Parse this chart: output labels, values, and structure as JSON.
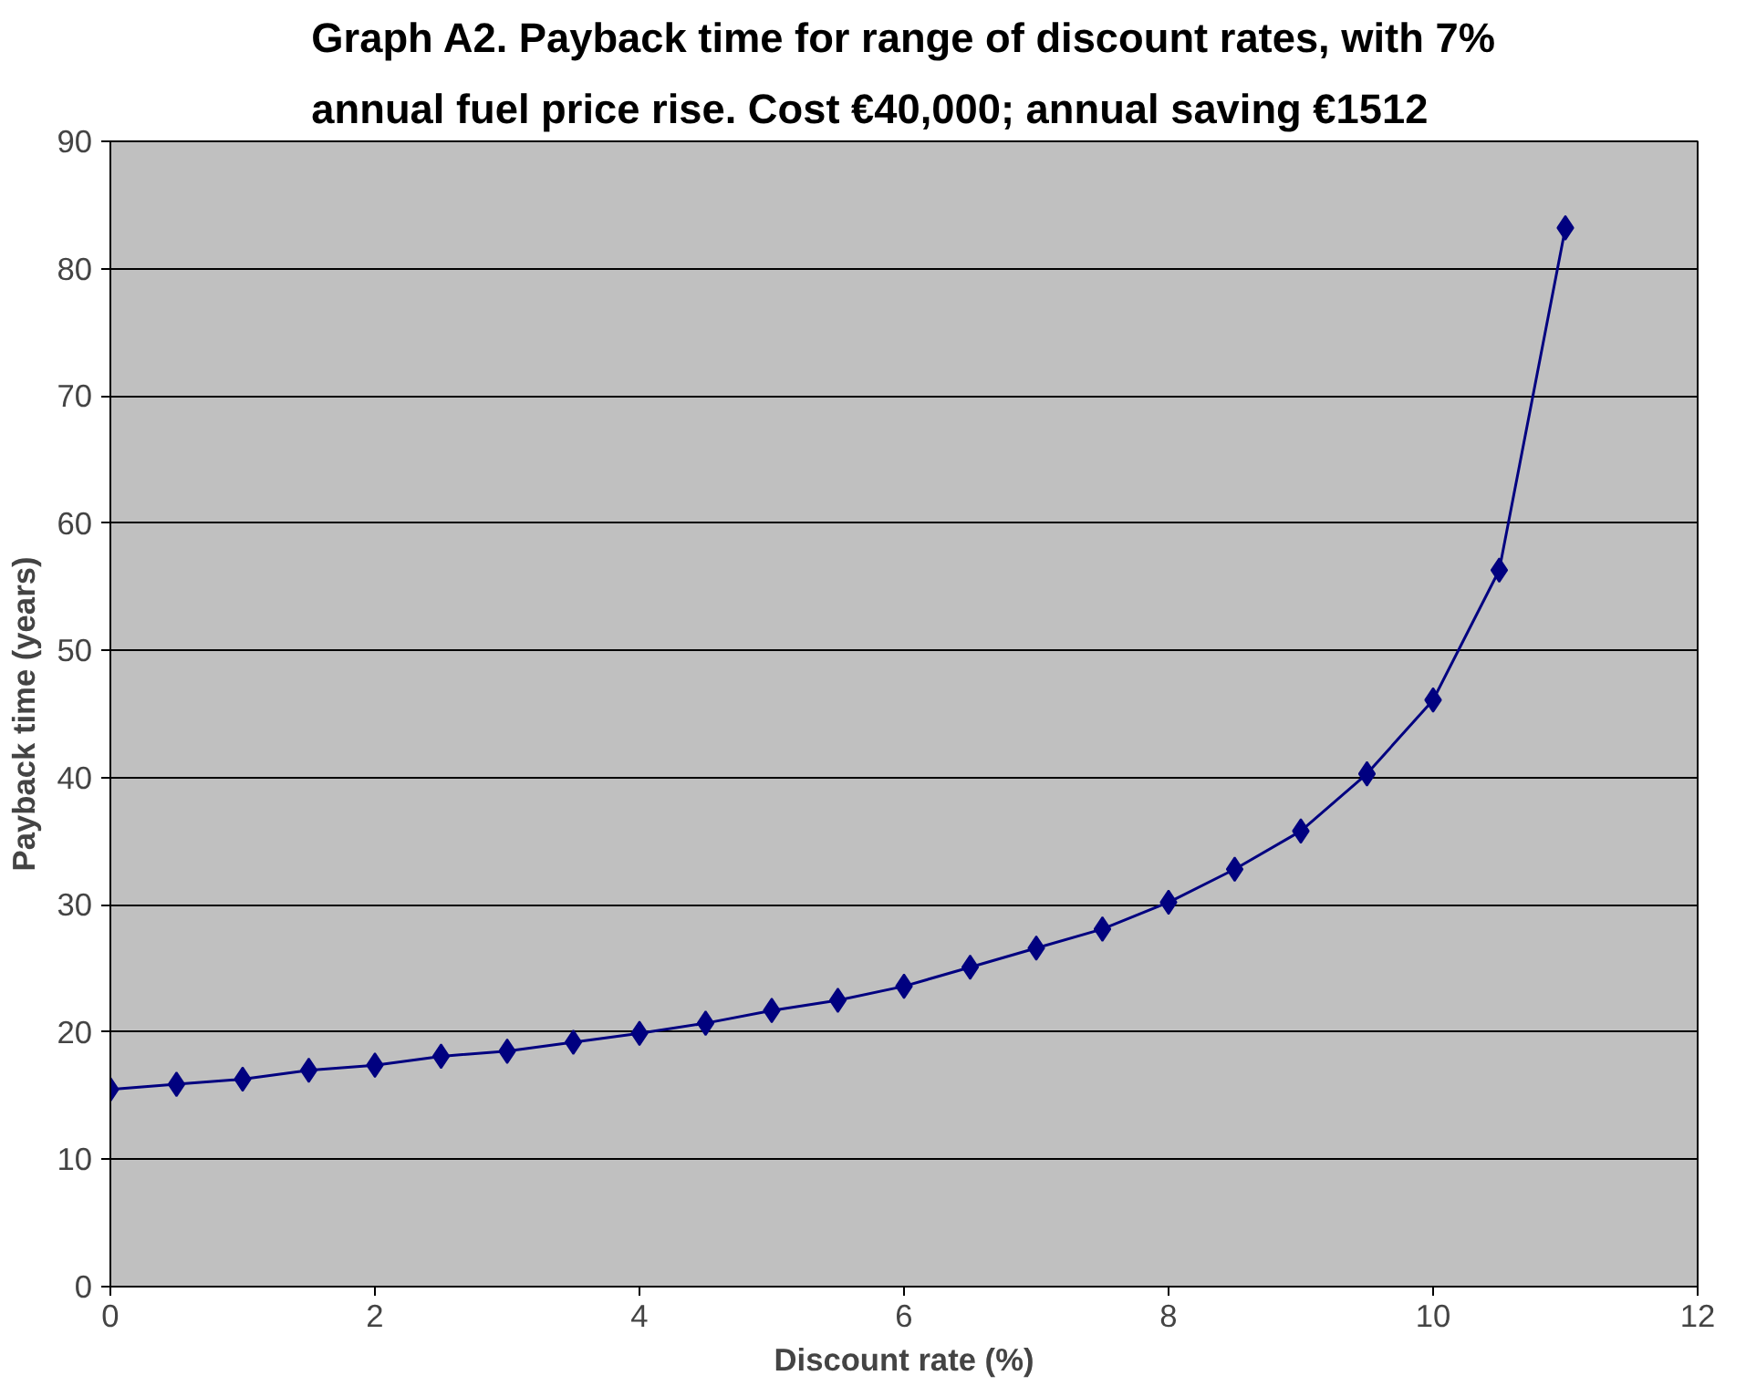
{
  "chart_data": {
    "type": "line",
    "title": "Graph A2. Payback time for range of discount rates, with 7% annual fuel price rise. Cost €40,000; annual saving €1512",
    "xlabel": "Discount rate (%)",
    "ylabel": "Payback time (years)",
    "x": [
      0,
      0.5,
      1,
      1.5,
      2,
      2.5,
      3,
      3.5,
      4,
      4.5,
      5,
      5.5,
      6,
      6.5,
      7,
      7.5,
      8,
      8.5,
      9,
      9.5,
      10,
      10.5,
      11
    ],
    "series": [
      {
        "color": "#000080",
        "values": [
          15.5,
          15.9,
          16.3,
          17.0,
          17.4,
          18.1,
          18.5,
          19.2,
          19.9,
          20.7,
          21.7,
          22.5,
          23.6,
          25.1,
          26.6,
          28.1,
          30.2,
          32.8,
          35.8,
          40.3,
          46.1,
          56.3,
          83.2
        ]
      }
    ],
    "xlim": [
      0,
      12
    ],
    "xticks": [
      0,
      2,
      4,
      6,
      8,
      10,
      12
    ],
    "ylim": [
      0,
      90
    ],
    "yticks": [
      0,
      10,
      20,
      30,
      40,
      50,
      60,
      70,
      80,
      90
    ],
    "grid": "y",
    "marker": "diamond",
    "line_style": "solid"
  }
}
